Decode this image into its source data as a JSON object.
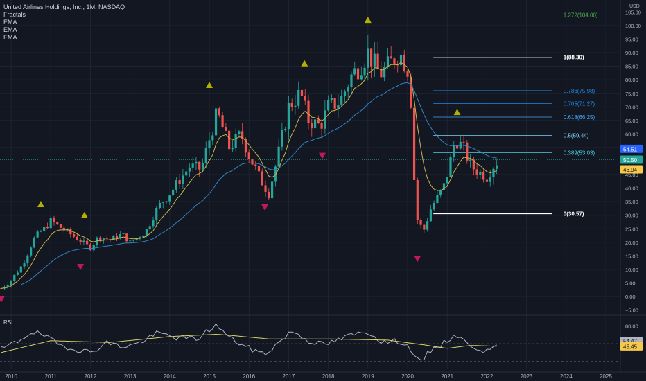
{
  "legend": {
    "title": "United Airlines Holdings, Inc., 1M, NASDAQ",
    "indicators": [
      "Fractals",
      "EMA",
      "EMA",
      "EMA"
    ]
  },
  "colors": {
    "background": "#131722",
    "grid": "#1f2433",
    "up": "#26a69a",
    "down": "#ef5350",
    "ema_short": "#c9b44a",
    "ema_long": "#2f86c4",
    "fractal_up": "#b5b000",
    "fractal_down": "#c2185b",
    "rsi": "#b2b5be",
    "rsi_ma": "#d8d36b",
    "axis_text": "#b2b5be"
  },
  "chart_data": [
    {
      "type": "candlestick",
      "title": "United Airlines Holdings, Inc., 1M, NASDAQ",
      "currency": "USD",
      "x_ticks": [
        "2010",
        "2011",
        "2012",
        "2013",
        "2014",
        "2015",
        "2016",
        "2017",
        "2018",
        "2019",
        "2020",
        "2021",
        "2022",
        "2023",
        "2024",
        "2025"
      ],
      "y_ticks": [
        105,
        100,
        95,
        90,
        85,
        80,
        75,
        70,
        65,
        60,
        55,
        50,
        45,
        40,
        35,
        30,
        25,
        20,
        15,
        10,
        5,
        0,
        -5
      ],
      "y_tick_labels": [
        "105.00",
        "100.00",
        "95.00",
        "90.00",
        "85.00",
        "80.00",
        "75.00",
        "70.00",
        "65.00",
        "60.00",
        "55.00",
        "50.00",
        "45.00",
        "40.00",
        "35.00",
        "30.00",
        "25.00",
        "20.00",
        "15.00",
        "10.00",
        "5.00",
        "0.00",
        "−5.00"
      ],
      "ylim": [
        -7,
        106
      ],
      "price_key_points": [
        [
          2009.75,
          3
        ],
        [
          2010.0,
          6
        ],
        [
          2010.3,
          12
        ],
        [
          2010.6,
          22
        ],
        [
          2010.9,
          26
        ],
        [
          2011.0,
          28
        ],
        [
          2011.4,
          24
        ],
        [
          2011.7,
          21
        ],
        [
          2012.0,
          18
        ],
        [
          2012.2,
          22
        ],
        [
          2012.5,
          21
        ],
        [
          2012.8,
          23
        ],
        [
          2013.0,
          20
        ],
        [
          2013.4,
          24
        ],
        [
          2013.7,
          33
        ],
        [
          2014.0,
          38
        ],
        [
          2014.5,
          48
        ],
        [
          2014.8,
          47
        ],
        [
          2015.0,
          58
        ],
        [
          2015.2,
          68
        ],
        [
          2015.5,
          55
        ],
        [
          2015.8,
          60
        ],
        [
          2016.0,
          52
        ],
        [
          2016.3,
          43
        ],
        [
          2016.5,
          38
        ],
        [
          2016.7,
          50
        ],
        [
          2017.0,
          70
        ],
        [
          2017.3,
          75
        ],
        [
          2017.5,
          65
        ],
        [
          2017.8,
          63
        ],
        [
          2018.0,
          70
        ],
        [
          2018.3,
          72
        ],
        [
          2018.6,
          82
        ],
        [
          2018.8,
          85
        ],
        [
          2019.0,
          90
        ],
        [
          2019.3,
          82
        ],
        [
          2019.5,
          85
        ],
        [
          2019.8,
          90
        ],
        [
          2020.0,
          84
        ],
        [
          2020.1,
          70
        ],
        [
          2020.2,
          30
        ],
        [
          2020.4,
          24
        ],
        [
          2020.6,
          33
        ],
        [
          2020.9,
          40
        ],
        [
          2021.0,
          45
        ],
        [
          2021.2,
          58
        ],
        [
          2021.4,
          55
        ],
        [
          2021.6,
          48
        ],
        [
          2021.8,
          46
        ],
        [
          2022.0,
          44
        ],
        [
          2022.15,
          48
        ],
        [
          2022.3,
          50.5
        ]
      ],
      "last_price": 50.5,
      "price_labels": [
        {
          "value": 54.51,
          "label": "54.51",
          "color": "#2962ff"
        },
        {
          "value": 50.5,
          "label": "50.50",
          "color": "#26a69a"
        },
        {
          "value": 46.94,
          "label": "46.94",
          "color": "#f7c948"
        }
      ],
      "fibonacci": [
        {
          "level": "1.272",
          "value": 104.0,
          "label": "1.272(104.00)",
          "color": "#4caf50"
        },
        {
          "level": "1",
          "value": 88.3,
          "label": "1(88.30)",
          "color": "#ffffff"
        },
        {
          "level": "0.786",
          "value": 75.98,
          "label": "0.786(75.98)",
          "color": "#1e88e5"
        },
        {
          "level": "0.705",
          "value": 71.27,
          "label": "0.705(71.27)",
          "color": "#1e88e5"
        },
        {
          "level": "0.618",
          "value": 66.25,
          "label": "0.618(66.25)",
          "color": "#42a5f5"
        },
        {
          "level": "0.5",
          "value": 59.44,
          "label": "0.5(59.44)",
          "color": "#81d4fa"
        },
        {
          "level": "0.389",
          "value": 53.03,
          "label": "0.389(53.03)",
          "color": "#4dd0e1"
        },
        {
          "level": "0",
          "value": 30.57,
          "label": "0(30.57)",
          "color": "#ffffff"
        }
      ],
      "fractals_up": [
        [
          2010.75,
          34
        ],
        [
          2011.85,
          30
        ],
        [
          2015.0,
          78
        ],
        [
          2017.4,
          86
        ],
        [
          2019.0,
          102
        ],
        [
          2021.25,
          68
        ]
      ],
      "fractals_down": [
        [
          2009.75,
          -1
        ],
        [
          2011.75,
          11
        ],
        [
          2016.4,
          33
        ],
        [
          2017.85,
          52
        ],
        [
          2020.25,
          14
        ]
      ]
    },
    {
      "type": "line",
      "title": "RSI",
      "y_ticks": [
        80,
        50,
        20
      ],
      "y_tick_labels": [
        "80.00",
        "",
        ""
      ],
      "ylim": [
        10,
        90
      ],
      "rsi_key_points": [
        [
          2009.75,
          40
        ],
        [
          2010.2,
          55
        ],
        [
          2010.5,
          70
        ],
        [
          2010.8,
          65
        ],
        [
          2011.2,
          48
        ],
        [
          2011.7,
          40
        ],
        [
          2012.0,
          35
        ],
        [
          2012.4,
          52
        ],
        [
          2012.8,
          45
        ],
        [
          2013.2,
          50
        ],
        [
          2013.7,
          68
        ],
        [
          2014.2,
          60
        ],
        [
          2014.7,
          58
        ],
        [
          2015.0,
          74
        ],
        [
          2015.2,
          82
        ],
        [
          2015.5,
          60
        ],
        [
          2016.0,
          42
        ],
        [
          2016.4,
          32
        ],
        [
          2016.8,
          55
        ],
        [
          2017.1,
          72
        ],
        [
          2017.5,
          55
        ],
        [
          2017.9,
          48
        ],
        [
          2018.2,
          55
        ],
        [
          2018.6,
          65
        ],
        [
          2019.0,
          70
        ],
        [
          2019.4,
          52
        ],
        [
          2019.8,
          55
        ],
        [
          2020.1,
          40
        ],
        [
          2020.3,
          15
        ],
        [
          2020.6,
          40
        ],
        [
          2020.9,
          50
        ],
        [
          2021.2,
          66
        ],
        [
          2021.5,
          50
        ],
        [
          2021.8,
          42
        ],
        [
          2022.1,
          35
        ],
        [
          2022.3,
          54.47
        ]
      ],
      "rsi_ma_key_points": [
        [
          2009.75,
          35
        ],
        [
          2011.0,
          55
        ],
        [
          2012.5,
          52
        ],
        [
          2014.0,
          62
        ],
        [
          2015.2,
          66
        ],
        [
          2016.5,
          58
        ],
        [
          2018.0,
          58
        ],
        [
          2019.5,
          56
        ],
        [
          2020.4,
          48
        ],
        [
          2021.0,
          42
        ],
        [
          2021.6,
          47
        ],
        [
          2022.3,
          45.45
        ]
      ],
      "value_labels": [
        {
          "value": 54.47,
          "label": "54.47",
          "color": "#b2b5be"
        },
        {
          "value": 45.45,
          "label": "45.45",
          "color": "#f7c948"
        }
      ]
    }
  ]
}
